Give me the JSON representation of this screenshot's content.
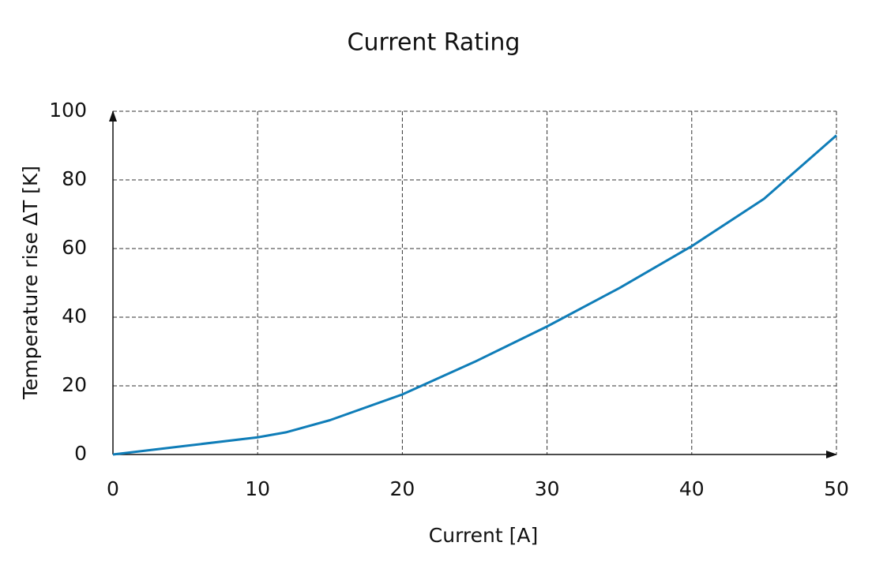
{
  "chart_data": {
    "type": "line",
    "title": "Current Rating",
    "x_label": "Current [A]",
    "y_label": "Temperature rise ΔT [K]",
    "series": [
      {
        "color": "#0f7db8",
        "x": [
          0,
          5,
          10,
          12,
          15,
          20,
          25,
          30,
          35,
          40,
          45,
          50
        ],
        "values": [
          0,
          2.5,
          5,
          6.5,
          10,
          17.5,
          27,
          37.3,
          48.5,
          60.7,
          74.5,
          93
        ]
      }
    ],
    "xlim": [
      0,
      50
    ],
    "xticks": [
      0,
      10,
      20,
      30,
      40,
      50
    ],
    "ylim": [
      0,
      100
    ],
    "yticks": [
      0,
      20,
      40,
      60,
      80,
      100
    ],
    "grid": true
  }
}
